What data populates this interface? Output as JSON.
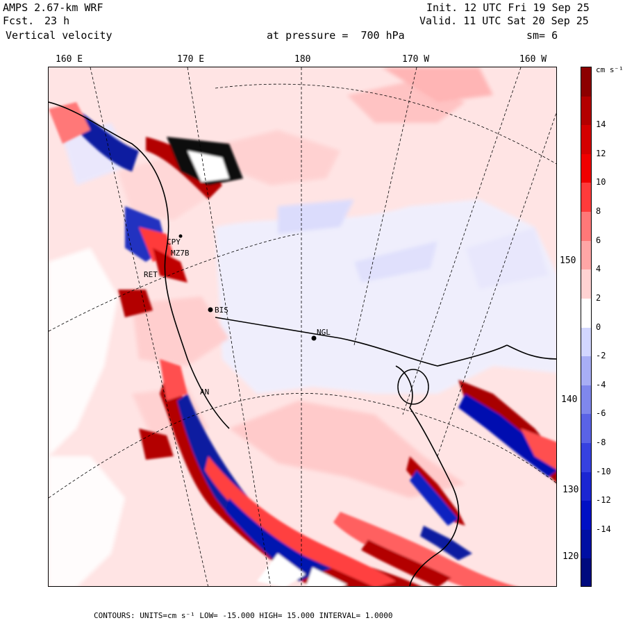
{
  "header": {
    "model": "AMPS 2.67-km WRF",
    "forecast_label": "Fcst.",
    "forecast_hours": "23 h",
    "field": "Vertical velocity",
    "init": "Init. 12 UTC Fri 19 Sep 25",
    "valid": "Valid. 11 UTC Sat 20 Sep 25",
    "level": "at pressure =  700 hPa",
    "smoothing": "sm= 6"
  },
  "longitude_labels": [
    "160 E",
    "170 E",
    "180",
    "170 W",
    "160 W"
  ],
  "latitude_labels": [
    "150 W",
    "140 W",
    "130 W",
    "120 W"
  ],
  "colorbar": {
    "units": "cm s⁻¹",
    "tick_labels": [
      "14",
      "12",
      "10",
      "8",
      "6",
      "4",
      "2",
      "0",
      "-2",
      "-4",
      "-6",
      "-8",
      "-10",
      "-12",
      "-14"
    ],
    "colors": [
      "#8c0000",
      "#b30000",
      "#d40000",
      "#f00000",
      "#ff3b3b",
      "#ff7878",
      "#ffa6a6",
      "#ffd2d2",
      "#ffffff",
      "#d2d6ff",
      "#a8aef5",
      "#7f87ec",
      "#5a63e6",
      "#3641e0",
      "#1b26d2",
      "#0010c4",
      "#000fa3",
      "#000b7e"
    ]
  },
  "stations": [
    "CPY",
    "MZ7B",
    "RET",
    "BIS",
    "NGL",
    "AN"
  ],
  "footer": {
    "contours": "CONTOURS:  UNITS=cm s⁻¹  LOW= -15.000      HIGH=  15.000      INTERVAL=   1.0000"
  }
}
